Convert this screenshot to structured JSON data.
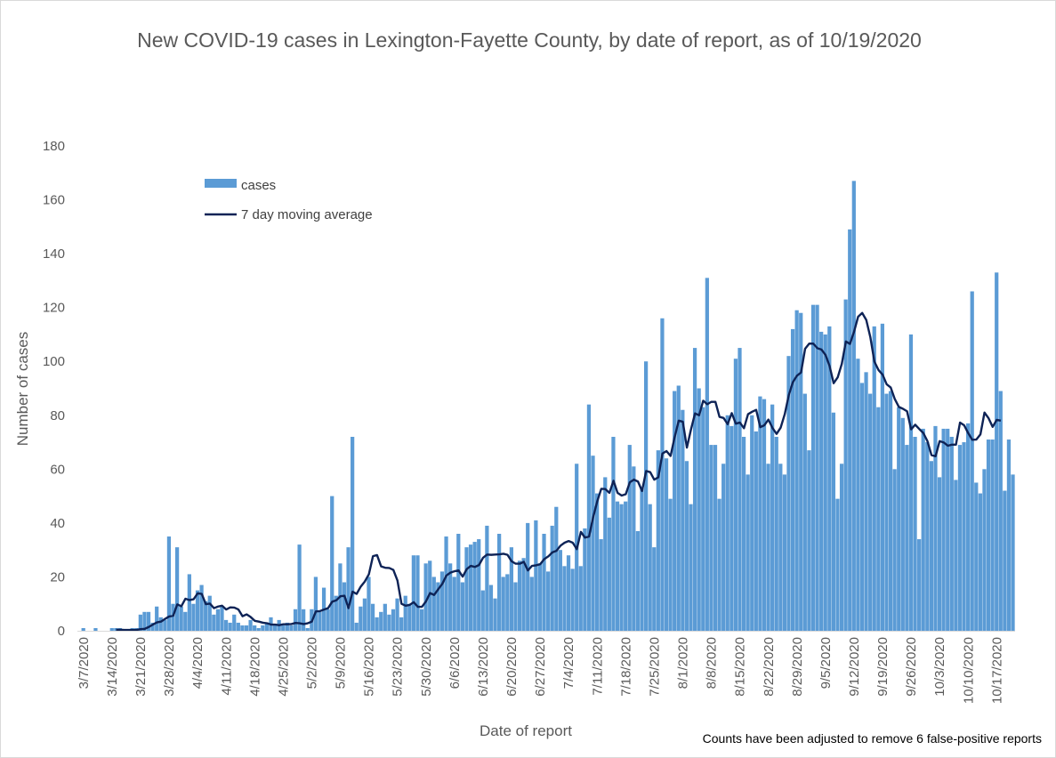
{
  "title": "New COVID-19 cases in Lexington-Fayette County, by date of report, as of 10/19/2020",
  "footnote": "Counts have been adjusted to remove 6 false-positive reports",
  "colors": {
    "bar": "#5b9bd5",
    "line": "#0e2356",
    "text": "#595959"
  },
  "chart_data": {
    "type": "bar",
    "title": "New COVID-19 cases in Lexington-Fayette County, by date of report, as of 10/19/2020",
    "xlabel": "Date of report",
    "ylabel": "Number of cases",
    "ylim": [
      0,
      180
    ],
    "yticks": [
      0,
      20,
      40,
      60,
      80,
      100,
      120,
      140,
      160,
      180
    ],
    "grid": false,
    "legend_position": "top-left",
    "start_date": "3/6/2020",
    "tick_labels": [
      "3/7/2020",
      "3/14/2020",
      "3/21/2020",
      "3/28/2020",
      "4/4/2020",
      "4/11/2020",
      "4/18/2020",
      "4/25/2020",
      "5/2/2020",
      "5/9/2020",
      "5/16/2020",
      "5/23/2020",
      "5/30/2020",
      "6/6/2020",
      "6/13/2020",
      "6/20/2020",
      "6/27/2020",
      "7/4/2020",
      "7/11/2020",
      "7/18/2020",
      "7/25/2020",
      "8/1/2020",
      "8/8/2020",
      "8/15/2020",
      "8/22/2020",
      "8/29/2020",
      "9/5/2020",
      "9/12/2020",
      "9/19/2020",
      "9/26/2020",
      "10/3/2020",
      "10/10/2020",
      "10/17/2020"
    ],
    "series": [
      {
        "name": "cases",
        "type": "bar",
        "values": [
          0,
          1,
          0,
          0,
          1,
          0,
          0,
          0,
          1,
          1,
          1,
          0,
          0,
          1,
          1,
          6,
          7,
          7,
          3,
          9,
          5,
          4,
          35,
          10,
          31,
          9,
          7,
          21,
          10,
          15,
          17,
          11,
          13,
          6,
          8,
          9,
          4,
          3,
          6,
          3,
          2,
          2,
          4,
          2,
          1,
          2,
          3,
          5,
          2,
          4,
          2,
          3,
          2,
          8,
          32,
          8,
          1,
          8,
          20,
          7,
          16,
          8,
          50,
          13,
          25,
          18,
          31,
          72,
          3,
          9,
          12,
          20,
          10,
          5,
          7,
          10,
          6,
          8,
          12,
          5,
          13,
          10,
          28,
          28,
          8,
          25,
          26,
          20,
          18,
          22,
          35,
          25,
          20,
          36,
          18,
          31,
          32,
          33,
          34,
          15,
          39,
          17,
          12,
          36,
          20,
          21,
          31,
          18,
          26,
          27,
          40,
          20,
          41,
          25,
          36,
          22,
          39,
          46,
          30,
          24,
          28,
          23,
          62,
          24,
          38,
          84,
          65,
          51,
          34,
          57,
          42,
          72,
          48,
          47,
          48,
          69,
          61,
          37,
          53,
          100,
          47,
          31,
          67,
          116,
          64,
          49,
          89,
          91,
          82,
          63,
          47,
          105,
          90,
          83,
          131,
          69,
          69,
          49,
          62,
          80,
          76,
          101,
          105,
          72,
          58,
          80,
          74,
          87,
          86,
          62,
          84,
          72,
          62,
          58,
          102,
          112,
          119,
          118,
          88,
          67,
          121,
          121,
          111,
          110,
          113,
          81,
          49,
          62,
          123,
          149,
          167,
          101,
          92,
          96,
          88,
          113,
          83,
          114,
          88,
          89,
          60,
          83,
          79,
          69,
          110,
          72,
          34,
          75,
          70,
          63,
          76,
          57,
          75,
          75,
          72,
          56,
          69,
          70,
          77,
          126,
          55,
          51,
          60,
          71,
          71,
          133,
          89,
          52,
          71,
          58
        ]
      },
      {
        "name": "7 day moving average",
        "type": "line",
        "start_index": 9,
        "values": [
          0.4,
          0.4,
          0.3,
          0.3,
          0.3,
          0.3,
          0.6,
          0.7,
          1.4,
          2.3,
          3.1,
          3.4,
          4.4,
          5.3,
          5.6,
          9.8,
          9.1,
          11.9,
          11.4,
          11.7,
          13.9,
          13.7,
          9.9,
          10.1,
          8.4,
          9.0,
          9.3,
          7.9,
          8.7,
          8.6,
          7.9,
          5.4,
          6.1,
          5.1,
          3.7,
          3.4,
          3.0,
          2.8,
          2.3,
          2.3,
          2.1,
          2.4,
          2.4,
          2.5,
          2.9,
          2.8,
          2.5,
          2.8,
          3.4,
          7.2,
          7.3,
          7.9,
          8.4,
          10.8,
          11.3,
          12.8,
          13.0,
          8.4,
          14.5,
          13.7,
          16.4,
          18.3,
          21.0,
          27.7,
          28.1,
          23.9,
          23.4,
          23.3,
          22.6,
          18.7,
          10.0,
          9.3,
          9.6,
          10.6,
          8.9,
          8.9,
          10.9,
          14.0,
          13.3,
          15.4,
          17.4,
          20.5,
          21.6,
          22.1,
          22.4,
          20.1,
          22.9,
          24.1,
          23.7,
          24.4,
          27.1,
          28.3,
          28.2,
          28.3,
          28.4,
          28.6,
          28.2,
          25.8,
          24.9,
          24.9,
          25.6,
          22.4,
          24.1,
          24.3,
          24.7,
          26.6,
          27.6,
          29.1,
          29.7,
          31.6,
          32.7,
          33.3,
          32.7,
          30.3,
          36.7,
          34.6,
          35.0,
          42.1,
          48.0,
          52.7,
          52.6,
          51.2,
          55.7,
          51.2,
          50.2,
          50.7,
          55.1,
          56.1,
          55.4,
          51.9,
          59.3,
          58.9,
          56.1,
          57.0,
          65.8,
          66.7,
          64.9,
          71.9,
          78.0,
          77.6,
          68.0,
          74.7,
          80.7,
          80.0,
          85.4,
          84.1,
          85.0,
          85.0,
          79.4,
          79.0,
          76.7,
          80.8,
          76.9,
          77.3,
          75.2,
          80.4,
          81.3,
          82.0,
          75.6,
          76.3,
          78.4,
          75.3,
          73.1,
          75.4,
          80.4,
          87.5,
          92.3,
          94.7,
          95.9,
          104.7,
          106.6,
          106.6,
          104.9,
          104.4,
          102.4,
          98.3,
          91.9,
          94.1,
          99.1,
          107.4,
          106.5,
          111.0,
          116.6,
          118.0,
          115.4,
          109.0,
          99.9,
          96.8,
          95.1,
          91.5,
          90.3,
          86.0,
          83.1,
          82.4,
          81.5,
          74.8,
          76.5,
          74.9,
          73.4,
          70.4,
          65.2,
          64.8,
          70.4,
          69.9,
          68.7,
          69.1,
          69.1,
          77.3,
          76.3,
          73.4,
          70.9,
          71.0,
          72.9,
          81.0,
          78.9,
          75.7,
          78.3,
          78.0
        ]
      }
    ]
  }
}
